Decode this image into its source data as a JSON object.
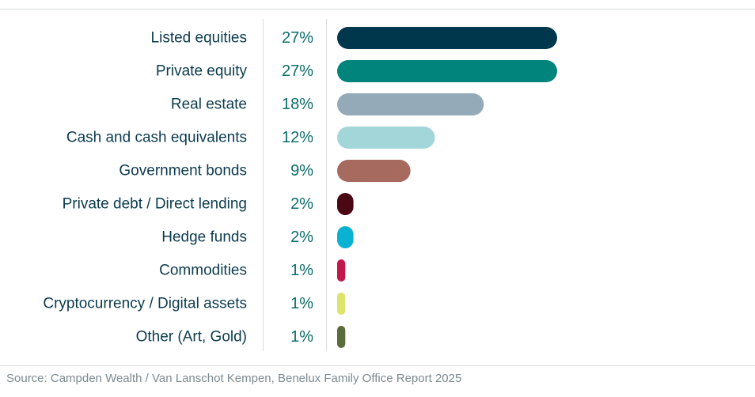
{
  "chart_data": {
    "type": "bar",
    "orientation": "horizontal",
    "categories": [
      "Listed equities",
      "Private equity",
      "Real estate",
      "Cash and cash equivalents",
      "Government bonds",
      "Private debt / Direct lending",
      "Hedge funds",
      "Commodities",
      "Cryptocurrency / Digital assets",
      "Other (Art, Gold)"
    ],
    "values": [
      27,
      27,
      18,
      12,
      9,
      2,
      2,
      1,
      1,
      1
    ],
    "value_labels": [
      "27%",
      "27%",
      "18%",
      "12%",
      "9%",
      "2%",
      "2%",
      "1%",
      "1%",
      "1%"
    ],
    "colors": [
      "#00374d",
      "#00847b",
      "#94aab8",
      "#a3d6d8",
      "#a66a5e",
      "#4a0814",
      "#0ab2d1",
      "#c1174a",
      "#dce46b",
      "#5b6b3c"
    ],
    "unit": "%",
    "title": "",
    "xlabel": "",
    "ylabel": "",
    "xlim": [
      0,
      27
    ],
    "grid": false,
    "legend": "none"
  },
  "source": "Source: Campden Wealth / Van Lanschot Kempen, Benelux Family Office Report 2025"
}
